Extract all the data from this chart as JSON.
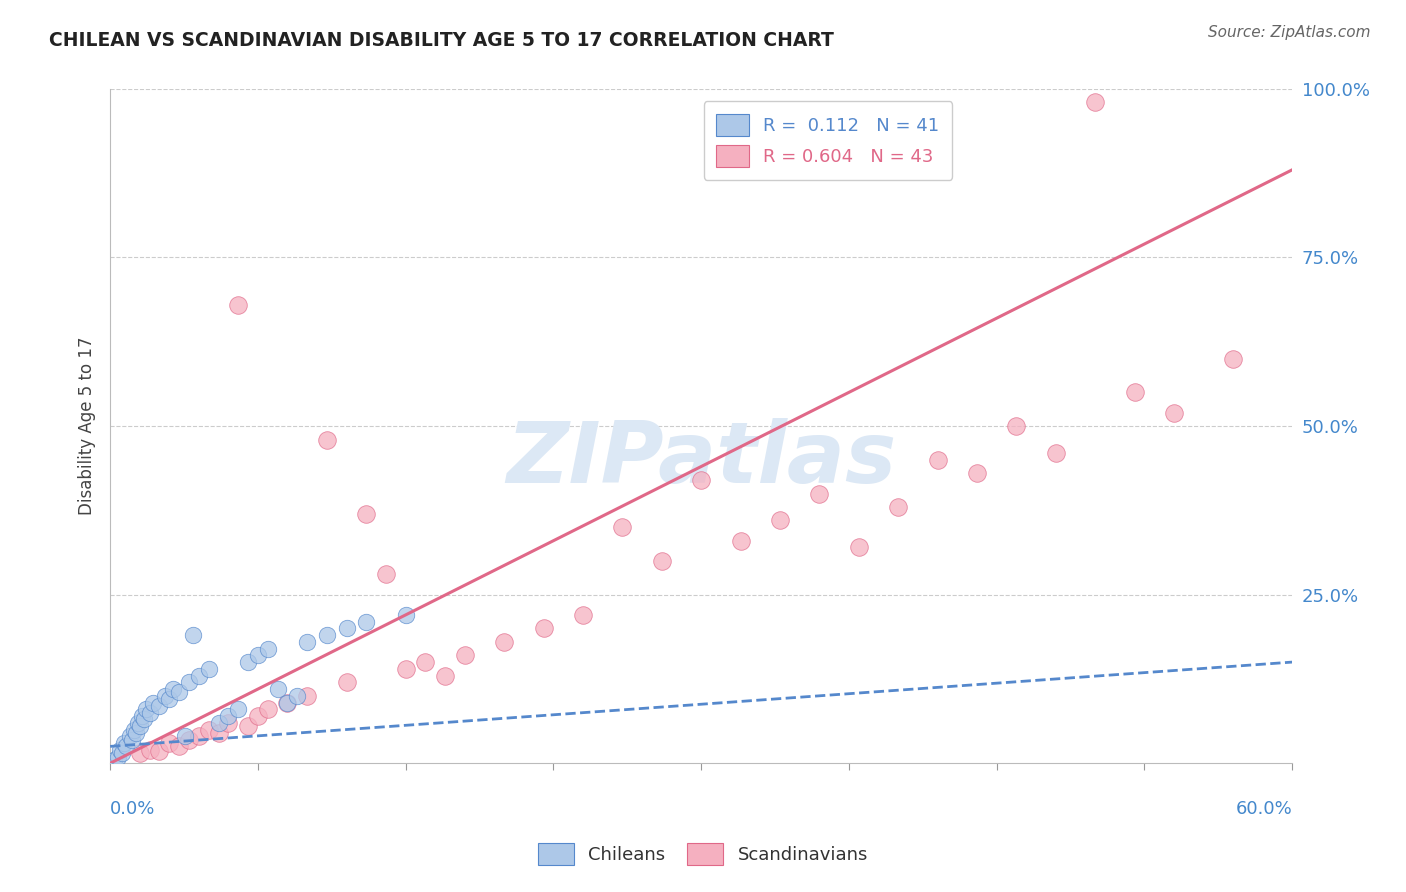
{
  "title": "CHILEAN VS SCANDINAVIAN DISABILITY AGE 5 TO 17 CORRELATION CHART",
  "source": "Source: ZipAtlas.com",
  "ylabel_label": "Disability Age 5 to 17",
  "xmin": 0.0,
  "xmax": 60.0,
  "ymin": 0.0,
  "ymax": 100.0,
  "chileans_R": 0.112,
  "chileans_N": 41,
  "scandinavians_R": 0.604,
  "scandinavians_N": 43,
  "chileans_color": "#adc8e8",
  "scandinavians_color": "#f5b0c0",
  "chileans_line_color": "#5588cc",
  "scandinavians_line_color": "#e06888",
  "watermark_text": "ZIPatlas",
  "watermark_color": "#dce8f5",
  "background_color": "#ffffff",
  "grid_color": "#cccccc",
  "tick_color": "#999999",
  "label_color": "#4488cc",
  "title_color": "#222222",
  "source_color": "#666666",
  "sc_reg_x0": 0.0,
  "sc_reg_y0": 0.0,
  "sc_reg_x1": 60.0,
  "sc_reg_y1": 88.0,
  "ch_reg_x0": 0.0,
  "ch_reg_y0": 2.5,
  "ch_reg_x1": 60.0,
  "ch_reg_y1": 15.0,
  "scandinavians_x": [
    1.5,
    2.0,
    2.5,
    3.0,
    3.5,
    4.0,
    4.5,
    5.0,
    5.5,
    6.0,
    6.5,
    7.0,
    7.5,
    8.0,
    9.0,
    10.0,
    11.0,
    12.0,
    13.0,
    14.0,
    15.0,
    16.0,
    17.0,
    18.0,
    20.0,
    22.0,
    24.0,
    26.0,
    28.0,
    30.0,
    32.0,
    34.0,
    36.0,
    38.0,
    40.0,
    42.0,
    44.0,
    46.0,
    48.0,
    50.0,
    52.0,
    54.0,
    57.0
  ],
  "scandinavians_y": [
    1.5,
    2.0,
    1.8,
    3.0,
    2.5,
    3.5,
    4.0,
    5.0,
    4.5,
    6.0,
    68.0,
    5.5,
    7.0,
    8.0,
    9.0,
    10.0,
    48.0,
    12.0,
    37.0,
    28.0,
    14.0,
    15.0,
    13.0,
    16.0,
    18.0,
    20.0,
    22.0,
    35.0,
    30.0,
    42.0,
    33.0,
    36.0,
    40.0,
    32.0,
    38.0,
    45.0,
    43.0,
    50.0,
    46.0,
    98.0,
    55.0,
    52.0,
    60.0
  ],
  "chileans_x": [
    0.2,
    0.4,
    0.5,
    0.6,
    0.7,
    0.8,
    1.0,
    1.1,
    1.2,
    1.3,
    1.4,
    1.5,
    1.6,
    1.7,
    1.8,
    2.0,
    2.2,
    2.5,
    2.8,
    3.0,
    3.2,
    3.5,
    3.8,
    4.0,
    4.5,
    5.0,
    5.5,
    6.0,
    6.5,
    7.0,
    7.5,
    8.0,
    8.5,
    9.0,
    9.5,
    10.0,
    11.0,
    12.0,
    13.0,
    15.0,
    4.2
  ],
  "chileans_y": [
    0.5,
    1.0,
    2.0,
    1.5,
    3.0,
    2.5,
    4.0,
    3.5,
    5.0,
    4.5,
    6.0,
    5.5,
    7.0,
    6.5,
    8.0,
    7.5,
    9.0,
    8.5,
    10.0,
    9.5,
    11.0,
    10.5,
    4.0,
    12.0,
    13.0,
    14.0,
    6.0,
    7.0,
    8.0,
    15.0,
    16.0,
    17.0,
    11.0,
    9.0,
    10.0,
    18.0,
    19.0,
    20.0,
    21.0,
    22.0,
    19.0
  ]
}
